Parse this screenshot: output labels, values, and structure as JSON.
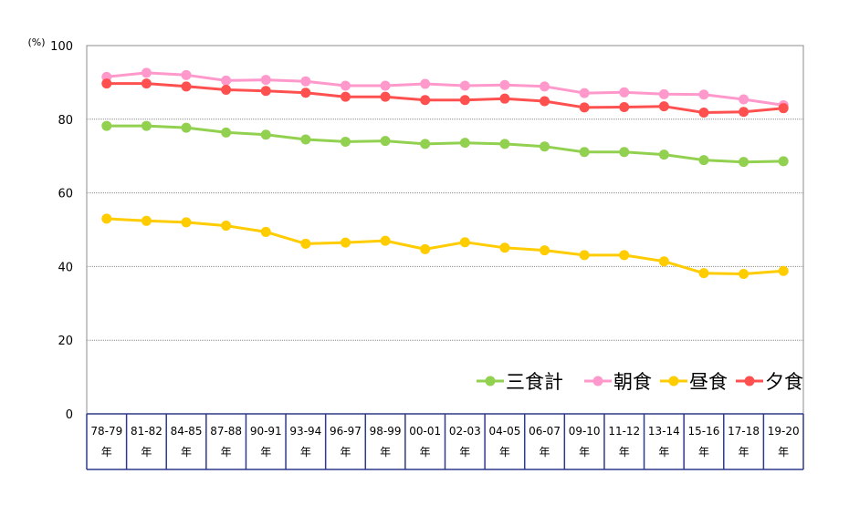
{
  "chart_data": {
    "type": "line",
    "unit_label": "(%)",
    "categories": [
      "78-79",
      "81-82",
      "84-85",
      "87-88",
      "90-91",
      "93-94",
      "96-97",
      "98-99",
      "00-01",
      "02-03",
      "04-05",
      "06-07",
      "09-10",
      "11-12",
      "13-14",
      "15-16",
      "17-18",
      "19-20"
    ],
    "category_suffix": "年",
    "ylim": [
      0,
      100
    ],
    "yticks": [
      0,
      20,
      40,
      60,
      80,
      100
    ],
    "grid": true,
    "legend_position": "bottom-right",
    "series": [
      {
        "name": "三食計",
        "color": "#92d050",
        "values": [
          78.2,
          78.2,
          77.7,
          76.4,
          75.8,
          74.5,
          73.9,
          74.1,
          73.3,
          73.6,
          73.3,
          72.6,
          71.1,
          71.1,
          70.4,
          68.9,
          68.4,
          68.6
        ]
      },
      {
        "name": "朝食",
        "color": "#ff99cc",
        "values": [
          91.5,
          92.6,
          92.0,
          90.5,
          90.7,
          90.3,
          89.1,
          89.1,
          89.6,
          89.1,
          89.3,
          88.9,
          87.1,
          87.3,
          86.8,
          86.7,
          85.4,
          83.8
        ]
      },
      {
        "name": "昼食",
        "color": "#ffcc00",
        "values": [
          53.0,
          52.4,
          52.0,
          51.1,
          49.4,
          46.2,
          46.5,
          47.0,
          44.7,
          46.6,
          45.1,
          44.4,
          43.1,
          43.1,
          41.4,
          38.2,
          38.0,
          38.8
        ]
      },
      {
        "name": "夕食",
        "color": "#ff5050",
        "values": [
          89.7,
          89.7,
          88.9,
          88.0,
          87.7,
          87.2,
          86.1,
          86.1,
          85.2,
          85.2,
          85.6,
          84.9,
          83.2,
          83.3,
          83.5,
          81.8,
          82.0,
          83.0
        ]
      }
    ]
  }
}
